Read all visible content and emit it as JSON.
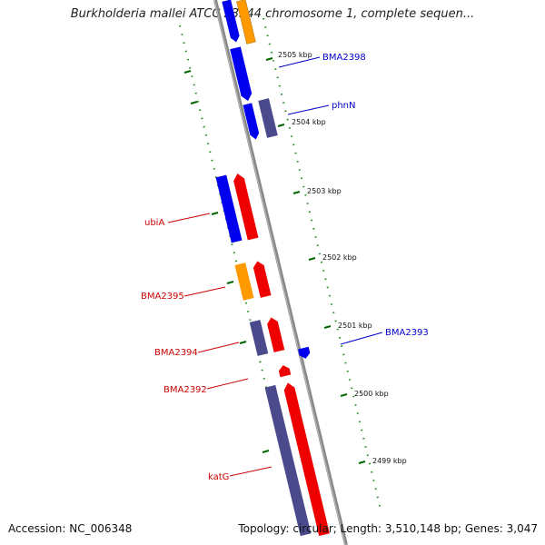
{
  "title": "Burkholderia mallei ATCC 23344 chromosome 1, complete sequen...",
  "footer": {
    "accession": "Accession: NC_006348",
    "topology": "Topology: circular; Length: 3,510,148 bp; Genes: 3,047"
  },
  "ticks": [
    "2505 kbp",
    "2504 kbp",
    "2503 kbp",
    "2502 kbp",
    "2501 kbp",
    "2500 kbp",
    "2499 kbp"
  ],
  "genes": [
    {
      "label": "BMA2398",
      "color": "#0000cc"
    },
    {
      "label": "phnN",
      "color": "#0000cc"
    },
    {
      "label": "ubiA",
      "color": "#cc0000"
    },
    {
      "label": "BMA2395",
      "color": "#cc0000"
    },
    {
      "label": "BMA2393",
      "color": "#0000cc"
    },
    {
      "label": "BMA2394",
      "color": "#cc0000"
    },
    {
      "label": "BMA2392",
      "color": "#cc0000"
    },
    {
      "label": "katG",
      "color": "#cc0000"
    }
  ],
  "colors": {
    "backbone": "#888888",
    "tick": "#006600",
    "gene_blue": "#0000ee",
    "gene_red": "#ee0000",
    "gene_orange": "#ff9900",
    "gene_slate": "#4a4a8c"
  }
}
